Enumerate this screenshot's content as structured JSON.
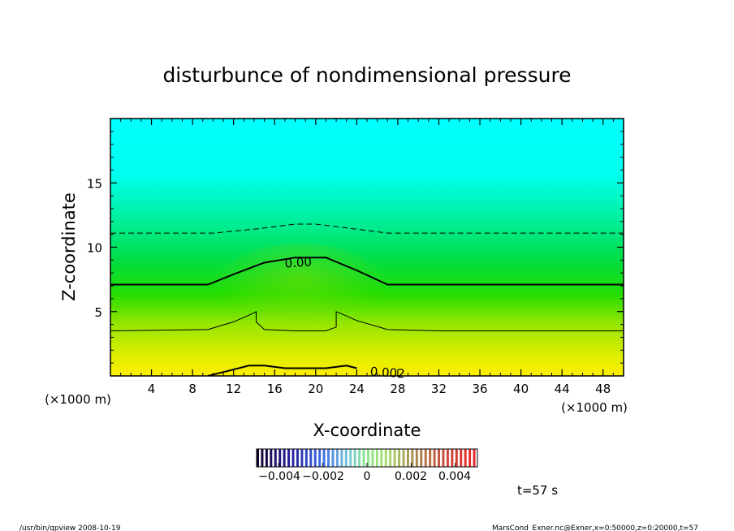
{
  "chart_data": {
    "type": "heatmap",
    "title": "disturbunce of nondimensional pressure",
    "xlabel": "X-coordinate",
    "ylabel": "Z-coordinate",
    "x_unit_left": "(×1000 m)",
    "x_unit_right": "(×1000 m)",
    "xlim": [
      0,
      50
    ],
    "ylim": [
      0,
      20
    ],
    "xticks": [
      4,
      8,
      12,
      16,
      20,
      24,
      28,
      32,
      36,
      40,
      44,
      48
    ],
    "yticks": [
      5,
      10,
      15
    ],
    "contour_labels": [
      "0.00",
      "0.002"
    ],
    "contours": [
      {
        "name": "dashed",
        "style": "dashed",
        "points": [
          [
            0,
            11.1
          ],
          [
            10,
            11.1
          ],
          [
            14,
            11.4
          ],
          [
            18,
            11.8
          ],
          [
            20,
            11.8
          ],
          [
            24,
            11.4
          ],
          [
            27,
            11.1
          ],
          [
            50,
            11.1
          ]
        ]
      },
      {
        "name": "zero",
        "style": "thick",
        "points": [
          [
            0,
            7.1
          ],
          [
            9.5,
            7.1
          ],
          [
            12,
            7.9
          ],
          [
            15,
            8.8
          ],
          [
            18,
            9.2
          ],
          [
            21,
            9.2
          ],
          [
            24,
            8.2
          ],
          [
            27,
            7.1
          ],
          [
            50,
            7.1
          ]
        ]
      },
      {
        "name": "mid",
        "style": "thin",
        "points": [
          [
            0,
            3.5
          ],
          [
            9.5,
            3.6
          ],
          [
            12,
            4.2
          ],
          [
            14,
            4.9
          ],
          [
            14.2,
            5.0
          ],
          [
            14.2,
            4.2
          ],
          [
            15,
            3.6
          ],
          [
            18,
            3.5
          ],
          [
            21,
            3.5
          ],
          [
            22,
            3.8
          ],
          [
            22,
            5.0
          ],
          [
            22.3,
            4.9
          ],
          [
            24,
            4.3
          ],
          [
            27,
            3.6
          ],
          [
            32,
            3.5
          ],
          [
            36,
            3.5
          ],
          [
            50,
            3.5
          ]
        ]
      },
      {
        "name": "bottom",
        "style": "thick",
        "points": [
          [
            9.5,
            0
          ],
          [
            11.5,
            0.4
          ],
          [
            13.5,
            0.8
          ],
          [
            15,
            0.8
          ],
          [
            17,
            0.6
          ],
          [
            21,
            0.6
          ],
          [
            23,
            0.8
          ],
          [
            24,
            0.6
          ]
        ]
      }
    ],
    "colorbar": {
      "tick_labels": [
        "-0.004",
        "-0.002",
        "0",
        "0.002",
        "0.004"
      ],
      "tick_values": [
        -0.004,
        -0.002,
        0,
        0.002,
        0.004
      ],
      "range": [
        -0.005,
        0.005
      ]
    },
    "time_label": "t=57 s"
  },
  "footer": {
    "left": "/usr/bin/gpview   2008-10-19",
    "right": "MarsCond_Exner.nc@Exner,x=0:50000,z=0:20000,t=57"
  },
  "colors": {
    "top": "#00ffff",
    "middle": "#00dd00",
    "bottom": "#ffee00"
  }
}
